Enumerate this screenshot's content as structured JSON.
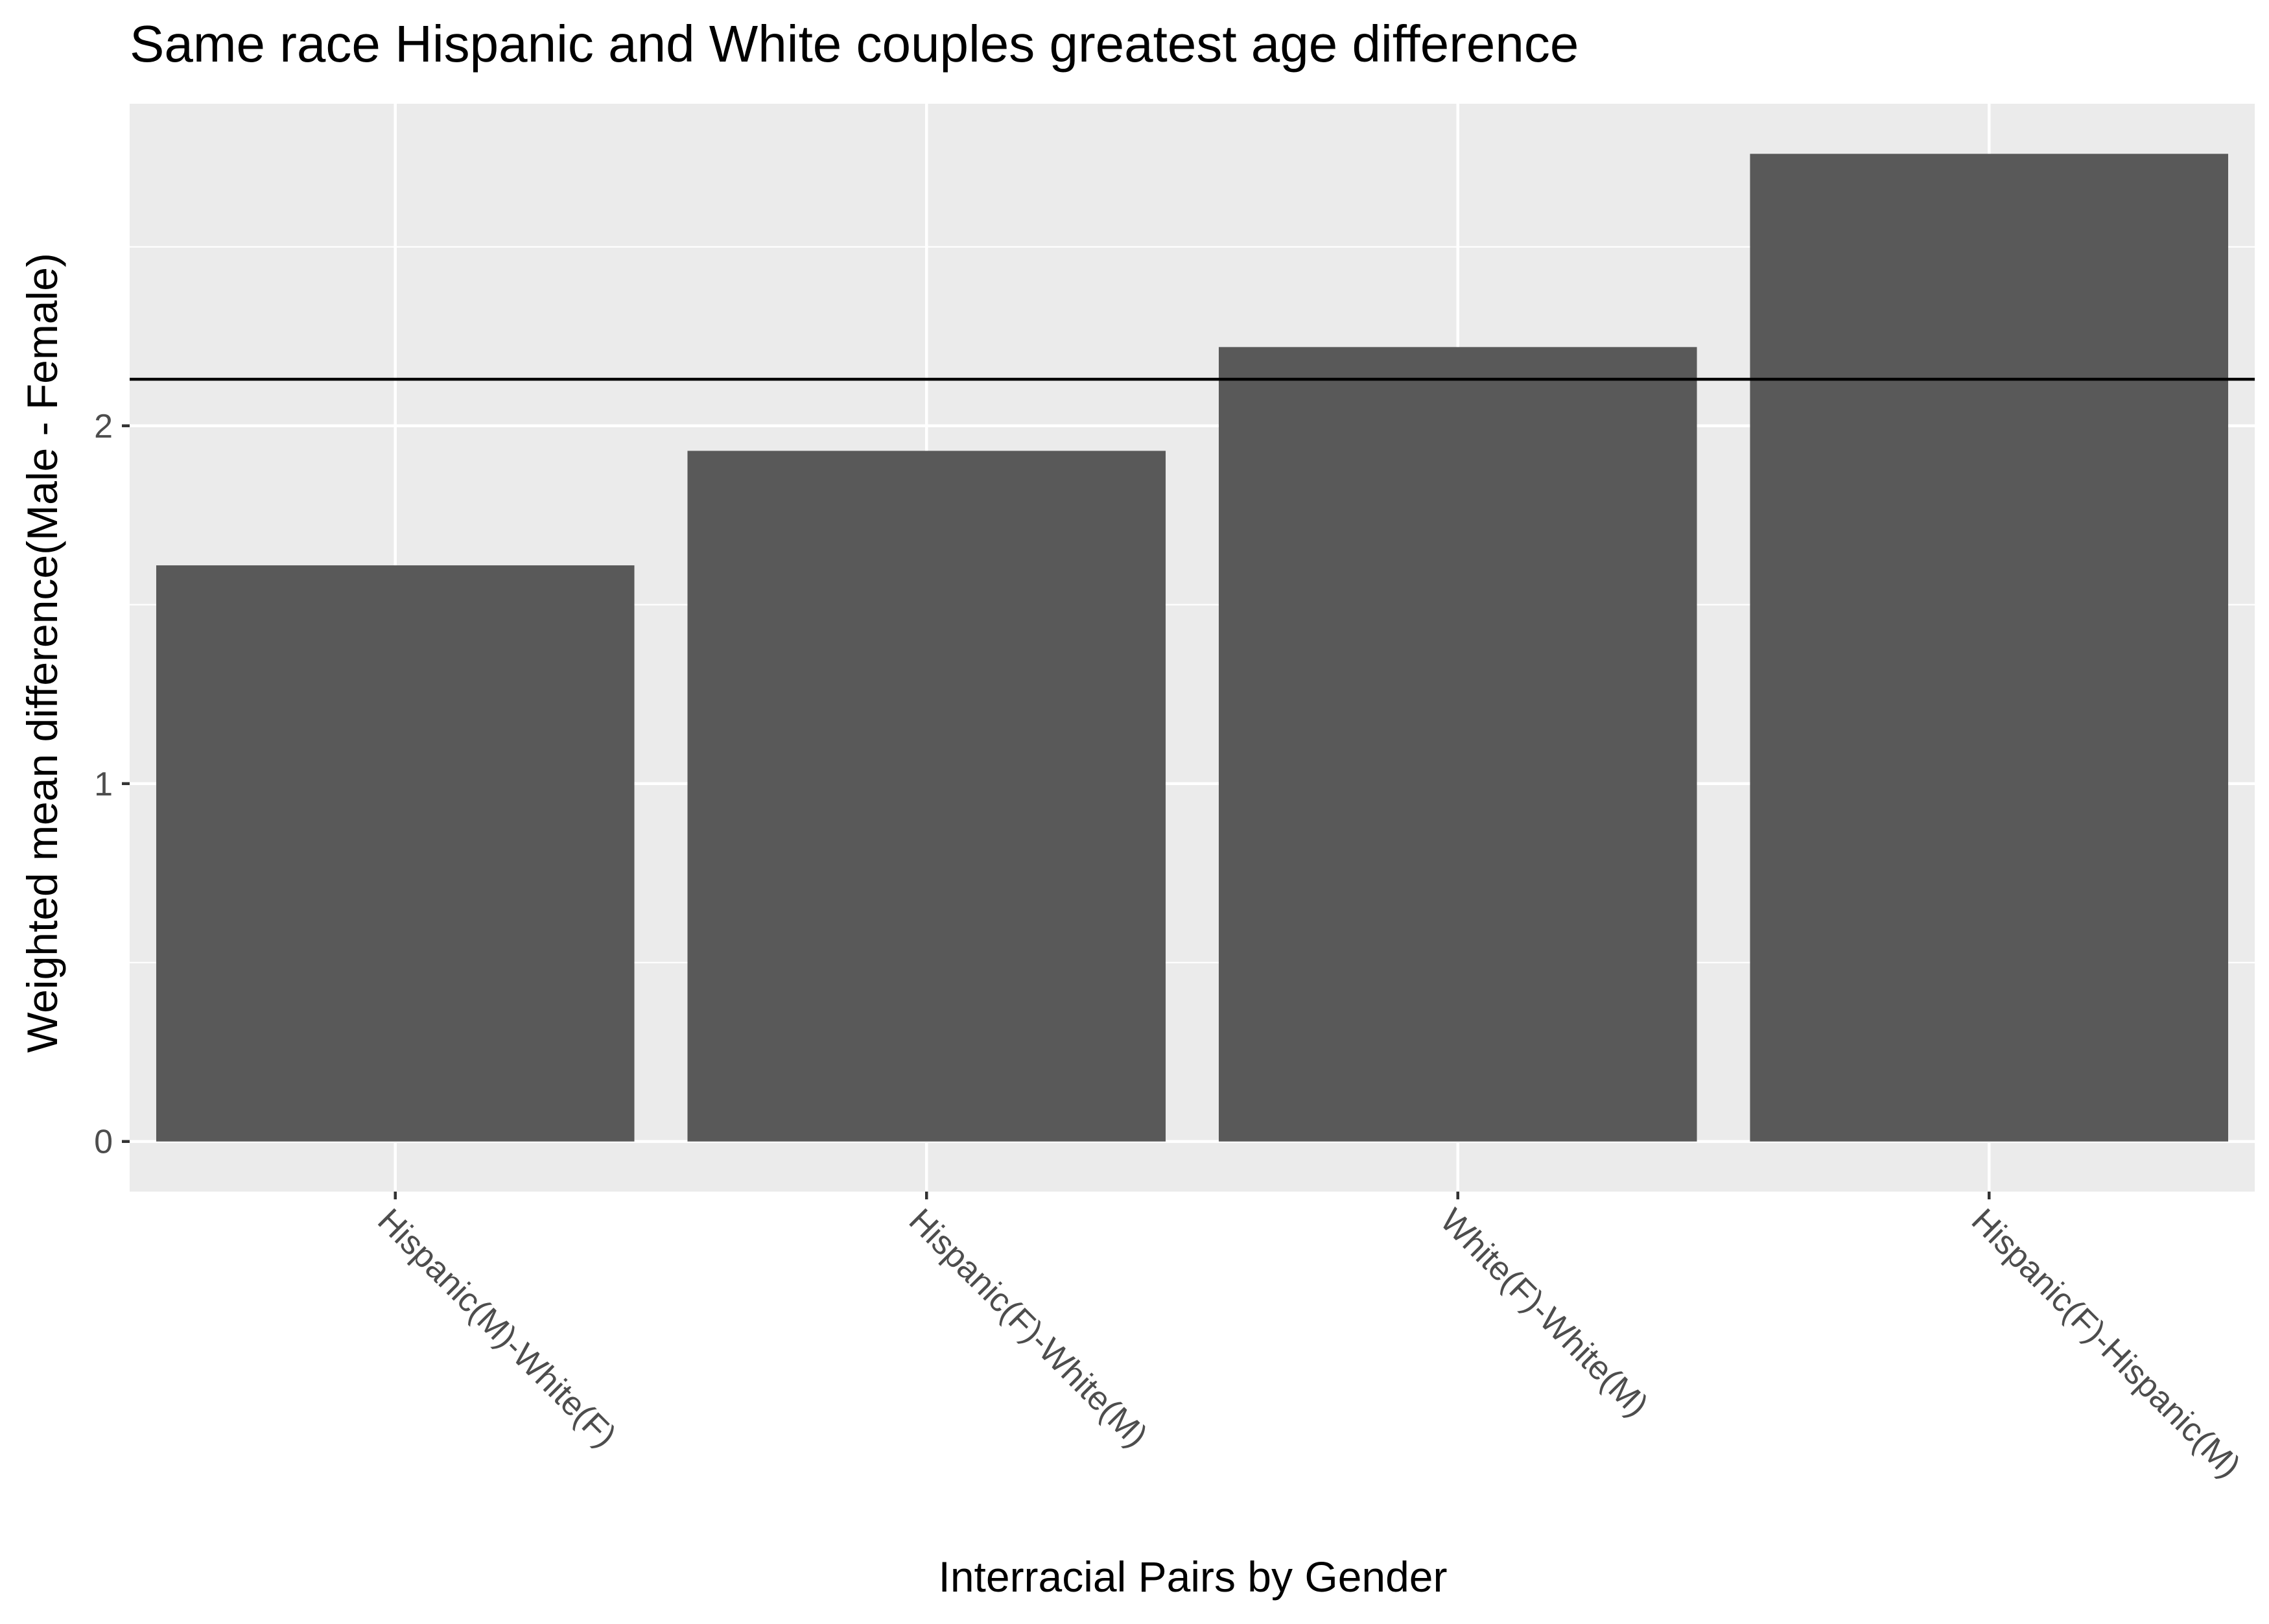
{
  "chart_data": {
    "type": "bar",
    "title": "Same race Hispanic and White couples greatest age difference",
    "xlabel": "Interracial Pairs by Gender",
    "ylabel": "Weighted mean difference(Male - Female)",
    "categories": [
      "Hispanic(M)-White(F)",
      "Hispanic(F)-White(M)",
      "White(F)-White(M)",
      "Hispanic(F)-Hispanic(M)"
    ],
    "values": [
      1.61,
      1.93,
      2.22,
      2.76
    ],
    "ylim": [
      -0.14,
      2.9
    ],
    "yticks": [
      0,
      1,
      2
    ],
    "reference_line": {
      "value": 2.13
    },
    "grid": true,
    "colors": {
      "bar": "#595959",
      "panel": "#ebebeb",
      "grid": "#ffffff",
      "reference_line": "#000000",
      "text": "#000000",
      "tick_text": "#4d4d4d",
      "tick_mark": "#333333"
    }
  }
}
